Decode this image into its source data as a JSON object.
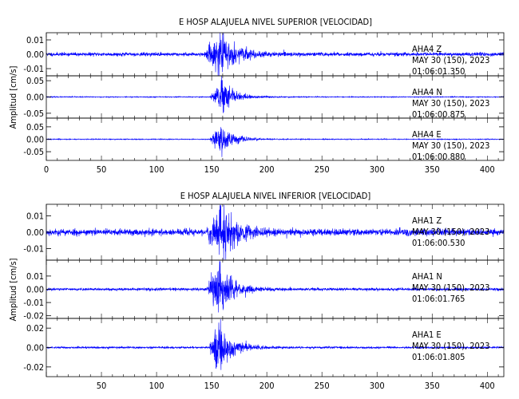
{
  "chart_data": [
    {
      "type": "line",
      "title": "E HOSP ALAJUELA NIVEL SUPERIOR [VELOCIDAD]",
      "ylabel": "Amplitud [cm/s]",
      "xlim": [
        0,
        415
      ],
      "xticks": [
        "0",
        "50",
        "100",
        "150",
        "200",
        "250",
        "300",
        "350",
        "400"
      ],
      "grid": false,
      "color": "#0000ff",
      "traces": [
        {
          "station": "AHA4",
          "component": "Z",
          "date_line": "MAY 30 (150), 2023",
          "time_line": "01:06:01.350",
          "ylim": [
            -0.015,
            0.015
          ],
          "ytick_values": [
            0.01,
            0.0,
            -0.01
          ],
          "ytick_labels": [
            "0.01",
            "0.00",
            "-0.01"
          ],
          "noise_amplitude": 0.0011,
          "event_start": 143,
          "event_peak": 157,
          "peak_amplitude": 0.0125,
          "decay_s": 14,
          "seed": 11
        },
        {
          "station": "AHA4",
          "component": "N",
          "date_line": "MAY 30 (150), 2023",
          "time_line": "01:06:00.875",
          "ylim": [
            -0.065,
            0.065
          ],
          "ytick_values": [
            0.05,
            0.0,
            -0.05
          ],
          "ytick_labels": [
            "0.05",
            "0.00",
            "-0.05"
          ],
          "noise_amplitude": 0.0012,
          "event_start": 148,
          "event_peak": 158,
          "peak_amplitude": 0.045,
          "decay_s": 12,
          "seed": 23
        },
        {
          "station": "AHA4",
          "component": "E",
          "date_line": "MAY 30 (150), 2023",
          "time_line": "01:06:00.880",
          "ylim": [
            -0.085,
            0.085
          ],
          "ytick_values": [
            0.05,
            0.0,
            -0.05
          ],
          "ytick_labels": [
            "0.05",
            "0.00",
            "-0.05"
          ],
          "noise_amplitude": 0.0015,
          "event_start": 148,
          "event_peak": 158,
          "peak_amplitude": 0.055,
          "decay_s": 11,
          "seed": 37
        }
      ]
    },
    {
      "type": "line",
      "title": "E HOSP ALAJUELA NIVEL INFERIOR [VELOCIDAD]",
      "ylabel": "Amplitud [cm/s]",
      "xlim": [
        0,
        415
      ],
      "xticks": [
        "50",
        "100",
        "150",
        "200",
        "250",
        "300",
        "350",
        "400"
      ],
      "grid": false,
      "color": "#0000ff",
      "traces": [
        {
          "station": "AHA1",
          "component": "Z",
          "date_line": "MAY 30 (150), 2023",
          "time_line": "01:06:00.530",
          "ylim": [
            -0.017,
            0.017
          ],
          "ytick_values": [
            0.01,
            0.0,
            -0.01
          ],
          "ytick_labels": [
            "0.01",
            "0.00",
            "-0.01"
          ],
          "noise_amplitude": 0.0018,
          "event_start": 145,
          "event_peak": 156,
          "peak_amplitude": 0.016,
          "decay_s": 14,
          "seed": 53
        },
        {
          "station": "AHA1",
          "component": "N",
          "date_line": "MAY 30 (150), 2023",
          "time_line": "01:06:01.765",
          "ylim": [
            -0.022,
            0.022
          ],
          "ytick_values": [
            0.01,
            0.0,
            -0.01,
            -0.02
          ],
          "ytick_labels": [
            "0.01",
            "0.00",
            "-0.01",
            "-0.02"
          ],
          "noise_amplitude": 0.0009,
          "event_start": 145,
          "event_peak": 156,
          "peak_amplitude": 0.018,
          "decay_s": 13,
          "seed": 71
        },
        {
          "station": "AHA1",
          "component": "E",
          "date_line": "MAY 30 (150), 2023",
          "time_line": "01:06:01.805",
          "ylim": [
            -0.03,
            0.03
          ],
          "ytick_values": [
            0.02,
            0.0,
            -0.02
          ],
          "ytick_labels": [
            "0.02",
            "0.00",
            "-0.02"
          ],
          "noise_amplitude": 0.0009,
          "event_start": 148,
          "event_peak": 155,
          "peak_amplitude": 0.026,
          "decay_s": 12,
          "seed": 89
        }
      ]
    }
  ]
}
